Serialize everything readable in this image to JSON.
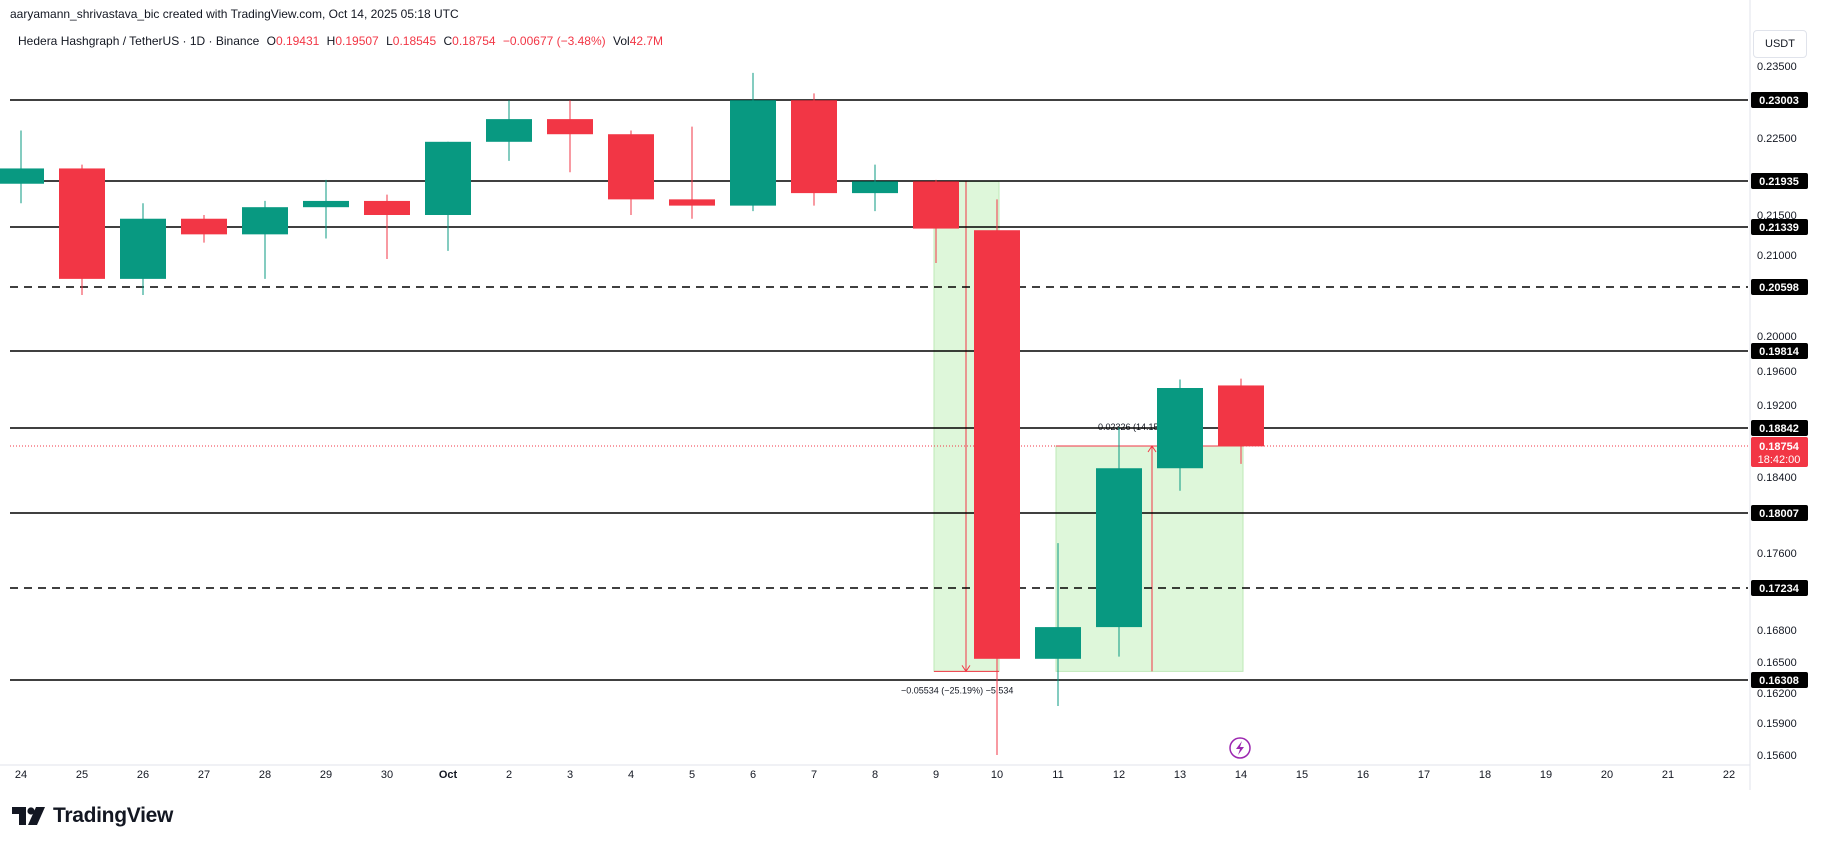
{
  "attribution": "aaryamann_shrivastava_bic created with TradingView.com, Oct 14, 2025 05:18 UTC",
  "legend": {
    "symbol": "Hedera Hashgraph / TetherUS · 1D · Binance",
    "open_label": "O",
    "open": "0.19431",
    "high_label": "H",
    "high": "0.19507",
    "low_label": "L",
    "low": "0.18545",
    "close_label": "C",
    "close": "0.18754",
    "change": "−0.00677 (−3.48%)",
    "vol_label": "Vol",
    "vol": "42.7M"
  },
  "currency": "USDT",
  "logo": "TradingView",
  "colors": {
    "up": "#089981",
    "down": "#f23645",
    "measure_fill": "#dbf7d6",
    "line": "#000000"
  },
  "chart_data": {
    "type": "candlestick",
    "x_ticks": [
      "24",
      "25",
      "26",
      "27",
      "28",
      "29",
      "30",
      "Oct",
      "2",
      "3",
      "4",
      "5",
      "6",
      "7",
      "8",
      "9",
      "10",
      "11",
      "12",
      "13",
      "14",
      "15",
      "16",
      "17",
      "18",
      "19",
      "20",
      "21",
      "22"
    ],
    "y_ticks": [
      "0.23500",
      "0.22500",
      "0.21500",
      "0.21000",
      "0.20000",
      "0.19600",
      "0.19200",
      "0.18400",
      "0.17600",
      "0.16800",
      "0.16500",
      "0.16200",
      "0.15900",
      "0.15600"
    ],
    "candles": [
      {
        "date": "24",
        "open": 0.219,
        "high": 0.226,
        "low": 0.2165,
        "close": 0.221
      },
      {
        "date": "25",
        "open": 0.221,
        "high": 0.2215,
        "low": 0.205,
        "close": 0.207
      },
      {
        "date": "26",
        "open": 0.207,
        "high": 0.2165,
        "low": 0.205,
        "close": 0.2145
      },
      {
        "date": "27",
        "open": 0.2145,
        "high": 0.215,
        "low": 0.2115,
        "close": 0.2125
      },
      {
        "date": "28",
        "open": 0.2125,
        "high": 0.2168,
        "low": 0.207,
        "close": 0.216
      },
      {
        "date": "29",
        "open": 0.216,
        "high": 0.2195,
        "low": 0.212,
        "close": 0.2168
      },
      {
        "date": "30",
        "open": 0.2168,
        "high": 0.2176,
        "low": 0.2095,
        "close": 0.215
      },
      {
        "date": "Oct",
        "open": 0.215,
        "high": 0.2245,
        "low": 0.2105,
        "close": 0.2245
      },
      {
        "date": "2",
        "open": 0.2245,
        "high": 0.23,
        "low": 0.222,
        "close": 0.2275
      },
      {
        "date": "3",
        "open": 0.2275,
        "high": 0.23,
        "low": 0.2205,
        "close": 0.2255
      },
      {
        "date": "4",
        "open": 0.2255,
        "high": 0.226,
        "low": 0.215,
        "close": 0.217
      },
      {
        "date": "5",
        "open": 0.217,
        "high": 0.2265,
        "low": 0.2145,
        "close": 0.2162
      },
      {
        "date": "6",
        "open": 0.2162,
        "high": 0.234,
        "low": 0.2155,
        "close": 0.23
      },
      {
        "date": "7",
        "open": 0.23,
        "high": 0.231,
        "low": 0.2162,
        "close": 0.2178
      },
      {
        "date": "8",
        "open": 0.2178,
        "high": 0.2215,
        "low": 0.2155,
        "close": 0.2193
      },
      {
        "date": "9",
        "open": 0.2193,
        "high": 0.2195,
        "low": 0.209,
        "close": 0.2132
      },
      {
        "date": "10",
        "open": 0.213,
        "high": 0.217,
        "low": 0.156,
        "close": 0.1653
      },
      {
        "date": "11",
        "open": 0.1653,
        "high": 0.177,
        "low": 0.1607,
        "close": 0.1683
      },
      {
        "date": "12",
        "open": 0.1683,
        "high": 0.1885,
        "low": 0.1655,
        "close": 0.185
      },
      {
        "date": "13",
        "open": 0.185,
        "high": 0.195,
        "low": 0.1825,
        "close": 0.194
      },
      {
        "date": "14",
        "open": 0.1943,
        "high": 0.1951,
        "low": 0.1855,
        "close": 0.1875
      }
    ],
    "solid_levels": [
      "0.23003",
      "0.21935",
      "0.21339",
      "0.19814",
      "0.18842",
      "0.18007",
      "0.16308"
    ],
    "dashed_levels": [
      "0.20598",
      "0.17234"
    ],
    "current_price": {
      "value": "0.18754",
      "countdown": "18:42:00"
    },
    "measurements": [
      {
        "label": "−0.05534 (−25.19%) −5,534",
        "from": {
          "date": "9",
          "price": 0.2193
        },
        "to": {
          "date": "10",
          "price": 0.164
        }
      },
      {
        "label": "0.02326 (14.15%) 2,326",
        "from": {
          "date": "11",
          "price": 0.164
        },
        "to": {
          "date": "14",
          "price": 0.18754
        }
      }
    ]
  }
}
